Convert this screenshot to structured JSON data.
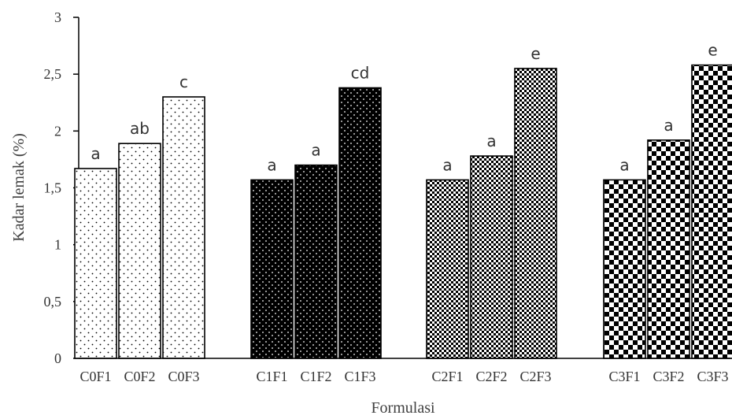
{
  "chart_data": {
    "type": "bar",
    "xlabel": "Formulasi",
    "ylabel": "Kadar lemak (%)",
    "ylim": [
      0,
      3
    ],
    "yticks": [
      "0",
      "0,5",
      "1",
      "1,5",
      "2",
      "2,5",
      "3"
    ],
    "grid": false,
    "legend": "none",
    "groups": [
      {
        "pattern": "sparse-dots",
        "bars": [
          {
            "category": "C0F1",
            "value": 1.67,
            "label": "a"
          },
          {
            "category": "C0F2",
            "value": 1.89,
            "label": "ab"
          },
          {
            "category": "C0F3",
            "value": 2.3,
            "label": "c"
          }
        ]
      },
      {
        "pattern": "dark-dots",
        "bars": [
          {
            "category": "C1F1",
            "value": 1.57,
            "label": "a"
          },
          {
            "category": "C1F2",
            "value": 1.7,
            "label": "a"
          },
          {
            "category": "C1F3",
            "value": 2.38,
            "label": "cd"
          }
        ]
      },
      {
        "pattern": "small-checker",
        "bars": [
          {
            "category": "C2F1",
            "value": 1.57,
            "label": "a"
          },
          {
            "category": "C2F2",
            "value": 1.78,
            "label": "a"
          },
          {
            "category": "C2F3",
            "value": 2.55,
            "label": "e"
          }
        ]
      },
      {
        "pattern": "large-checker",
        "bars": [
          {
            "category": "C3F1",
            "value": 1.57,
            "label": "a"
          },
          {
            "category": "C3F2",
            "value": 1.92,
            "label": "a"
          },
          {
            "category": "C3F3",
            "value": 2.58,
            "label": "e"
          }
        ]
      }
    ]
  }
}
